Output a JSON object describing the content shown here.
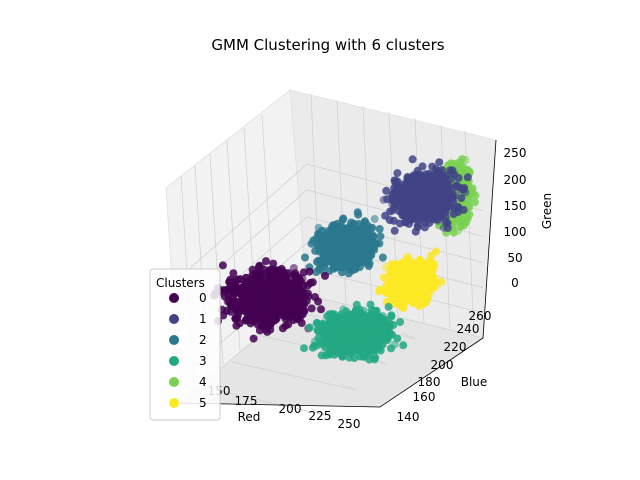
{
  "chart_data": {
    "type": "scatter",
    "projection": "3d",
    "title": "GMM Clustering with 6 clusters",
    "axes": {
      "x": {
        "label": "Red",
        "ticks": [
          "150",
          "175",
          "200",
          "225",
          "250"
        ]
      },
      "y": {
        "label": "Blue",
        "ticks": [
          "140",
          "160",
          "180",
          "200",
          "220",
          "240",
          "260"
        ]
      },
      "z": {
        "label": "Green",
        "ticks": [
          "0",
          "50",
          "100",
          "150",
          "200",
          "250"
        ]
      }
    },
    "legend": {
      "title": "Clusters",
      "placement": "lower-left",
      "entries": [
        "0",
        "1",
        "2",
        "3",
        "4",
        "5"
      ]
    },
    "colors": {
      "0": "#440154",
      "1": "#414487",
      "2": "#2a788e",
      "3": "#22a884",
      "4": "#7ad151",
      "5": "#fde725"
    },
    "grid": true,
    "series": [
      {
        "name": "0",
        "color": "#440154",
        "region": {
          "red": [
            125,
            205
          ],
          "blue": [
            140,
            185
          ],
          "green": [
            60,
            175
          ]
        }
      },
      {
        "name": "1",
        "color": "#414487",
        "region": {
          "red": [
            195,
            255
          ],
          "blue": [
            215,
            260
          ],
          "green": [
            150,
            255
          ]
        }
      },
      {
        "name": "2",
        "color": "#2a788e",
        "region": {
          "red": [
            165,
            215
          ],
          "blue": [
            190,
            230
          ],
          "green": [
            110,
            200
          ]
        }
      },
      {
        "name": "3",
        "color": "#22a884",
        "region": {
          "red": [
            190,
            255
          ],
          "blue": [
            140,
            190
          ],
          "green": [
            30,
            110
          ]
        }
      },
      {
        "name": "4",
        "color": "#7ad151",
        "region": {
          "red": [
            225,
            255
          ],
          "blue": [
            225,
            262
          ],
          "green": [
            140,
            255
          ]
        }
      },
      {
        "name": "5",
        "color": "#fde725",
        "region": {
          "red": [
            215,
            255
          ],
          "blue": [
            190,
            225
          ],
          "green": [
            70,
            150
          ]
        }
      }
    ]
  }
}
